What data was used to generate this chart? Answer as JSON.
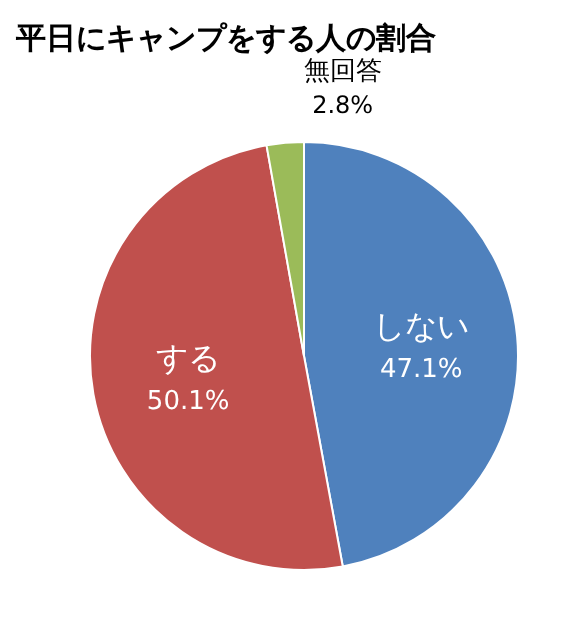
{
  "chart_data": {
    "type": "pie",
    "title": "平日にキャンプをする人の割合",
    "categories": [
      "しない",
      "する",
      "無回答"
    ],
    "values": [
      47.1,
      50.1,
      2.8
    ],
    "value_labels": [
      "47.1%",
      "50.1%",
      "2.8%"
    ],
    "colors": [
      "#4f81bd",
      "#c0504d",
      "#9bbb59"
    ]
  }
}
